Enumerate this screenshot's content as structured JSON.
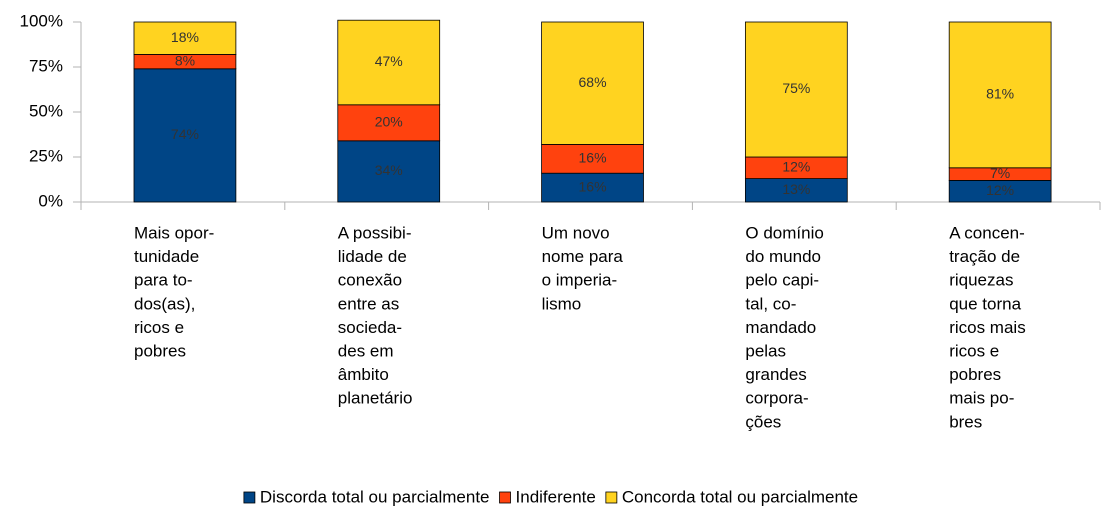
{
  "chart_data": {
    "type": "stacked_bar",
    "categories": [
      [
        "Mais opor-",
        "tunidade",
        "para to-",
        "dos(as),",
        "ricos e",
        "pobres"
      ],
      [
        "A possibi-",
        "lidade de",
        "conexão",
        "entre as",
        "socieda-",
        "des em",
        "âmbito",
        "planetário"
      ],
      [
        "Um novo",
        "nome para",
        "o imperia-",
        "lismo"
      ],
      [
        "O domínio",
        "do mundo",
        "pelo capi-",
        "tal, co-",
        "mandado",
        "pelas",
        "grandes",
        "corpora-",
        "ções"
      ],
      [
        "A concen-",
        "tração de",
        "riquezas",
        "que torna",
        "ricos mais",
        "ricos e",
        "pobres",
        "mais po-",
        "bres"
      ]
    ],
    "series": [
      {
        "name": "Discorda total ou parcialmente",
        "color": "#004586",
        "values": [
          74,
          34,
          16,
          13,
          12
        ],
        "value_labels": [
          "74%",
          "34%",
          "16%",
          "13%",
          "12%"
        ]
      },
      {
        "name": "Indiferente",
        "color": "#ff420e",
        "values": [
          8,
          20,
          16,
          12,
          7
        ],
        "value_labels": [
          "8%",
          "20%",
          "16%",
          "12%",
          "7%"
        ]
      },
      {
        "name": "Concorda total ou parcialmente",
        "color": "#ffd320",
        "values": [
          18,
          47,
          68,
          75,
          81
        ],
        "value_labels": [
          "18%",
          "47%",
          "68%",
          "75%",
          "81%"
        ]
      }
    ],
    "ylim": [
      0,
      100
    ],
    "yticks": [
      {
        "value": 0,
        "label": "0%"
      },
      {
        "value": 25,
        "label": "25%"
      },
      {
        "value": 50,
        "label": "50%"
      },
      {
        "value": 75,
        "label": "75%"
      },
      {
        "value": 100,
        "label": "100%"
      }
    ],
    "legend": "bottom"
  }
}
